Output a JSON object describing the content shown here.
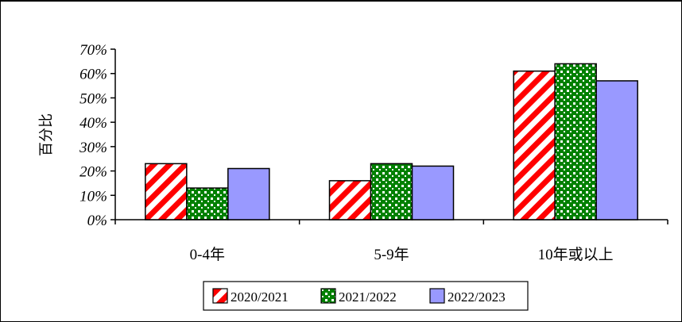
{
  "chart_data": {
    "type": "bar",
    "title": "",
    "xlabel": "",
    "ylabel": "百分比",
    "categories": [
      "0-4年",
      "5-9年",
      "10年或以上"
    ],
    "series": [
      {
        "name": "2020/2021",
        "values": [
          23,
          16,
          61
        ],
        "color": "#ff0000",
        "pattern": "diagonal-stripes"
      },
      {
        "name": "2021/2022",
        "values": [
          13,
          23,
          64
        ],
        "color": "#008000",
        "pattern": "dots"
      },
      {
        "name": "2022/2023",
        "values": [
          21,
          22,
          57
        ],
        "color": "#9999ff",
        "pattern": "solid"
      }
    ],
    "ylim": [
      0,
      70
    ],
    "yticks": [
      "0%",
      "10%",
      "20%",
      "30%",
      "40%",
      "50%",
      "60%",
      "70%"
    ],
    "grid": false,
    "legend_position": "bottom"
  }
}
